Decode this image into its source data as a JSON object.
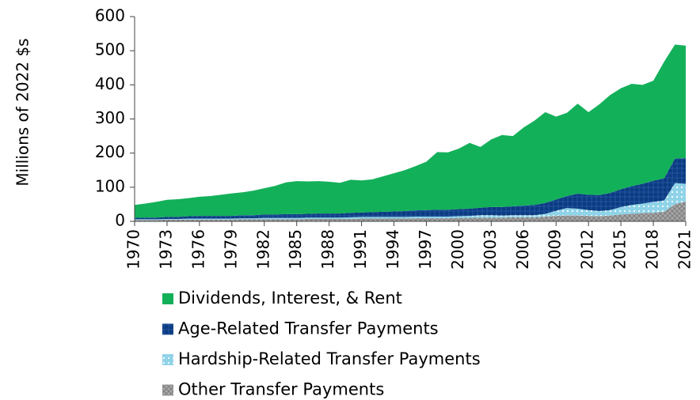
{
  "chart_data": {
    "type": "stacked-area",
    "y_label": "Millions of 2022 $s",
    "x": [
      1970,
      1971,
      1972,
      1973,
      1974,
      1975,
      1976,
      1977,
      1978,
      1979,
      1980,
      1981,
      1982,
      1983,
      1984,
      1985,
      1986,
      1987,
      1988,
      1989,
      1990,
      1991,
      1992,
      1993,
      1994,
      1995,
      1996,
      1997,
      1998,
      1999,
      2000,
      2001,
      2002,
      2003,
      2004,
      2005,
      2006,
      2007,
      2008,
      2009,
      2010,
      2011,
      2012,
      2013,
      2014,
      2015,
      2016,
      2017,
      2018,
      2019,
      2020,
      2021
    ],
    "xlim": [
      1970,
      2021
    ],
    "xticks": [
      1970,
      1973,
      1976,
      1979,
      1982,
      1985,
      1988,
      1991,
      1994,
      1997,
      2000,
      2003,
      2006,
      2009,
      2012,
      2015,
      2018,
      2021
    ],
    "ylim": [
      0,
      600
    ],
    "yticks": [
      0,
      100,
      200,
      300,
      400,
      500,
      600
    ],
    "series": [
      {
        "name": "Other Transfer Payments",
        "color": "#a6a6a6",
        "values": [
          4,
          4,
          4,
          5,
          5,
          5,
          5,
          5,
          5,
          5,
          6,
          6,
          6,
          6,
          6,
          6,
          7,
          7,
          7,
          7,
          7,
          8,
          8,
          8,
          8,
          8,
          9,
          9,
          9,
          9,
          10,
          10,
          11,
          11,
          11,
          12,
          12,
          12,
          14,
          16,
          17,
          17,
          16,
          15,
          17,
          20,
          22,
          24,
          25,
          28,
          50,
          58
        ]
      },
      {
        "name": "Hardship-Related Transfer Payments",
        "color": "#8fd3e8",
        "values": [
          2,
          2,
          2,
          2,
          2,
          3,
          3,
          3,
          3,
          3,
          3,
          3,
          4,
          4,
          4,
          4,
          4,
          4,
          4,
          4,
          5,
          5,
          5,
          5,
          5,
          5,
          5,
          5,
          5,
          5,
          5,
          6,
          7,
          7,
          6,
          6,
          6,
          6,
          8,
          15,
          22,
          20,
          17,
          15,
          16,
          22,
          26,
          28,
          32,
          33,
          62,
          52
        ]
      },
      {
        "name": "Age-Related Transfer Payments",
        "color": "#0b3b80",
        "values": [
          4,
          5,
          5,
          6,
          6,
          7,
          8,
          8,
          8,
          8,
          9,
          9,
          10,
          10,
          11,
          11,
          11,
          12,
          12,
          12,
          13,
          13,
          14,
          15,
          16,
          17,
          18,
          19,
          20,
          20,
          21,
          21,
          22,
          24,
          25,
          26,
          28,
          30,
          32,
          33,
          35,
          44,
          45,
          47,
          50,
          52,
          55,
          58,
          62,
          65,
          72,
          75
        ]
      },
      {
        "name": "Dividends, Interest, & Rent",
        "color": "#13b05a",
        "values": [
          38,
          41,
          46,
          50,
          52,
          53,
          56,
          58,
          62,
          66,
          67,
          72,
          77,
          84,
          93,
          97,
          95,
          95,
          93,
          90,
          97,
          94,
          96,
          104,
          112,
          120,
          130,
          142,
          169,
          168,
          177,
          193,
          178,
          198,
          211,
          206,
          229,
          247,
          266,
          243,
          244,
          264,
          242,
          266,
          287,
          296,
          300,
          290,
          293,
          342,
          334,
          330
        ]
      }
    ]
  }
}
